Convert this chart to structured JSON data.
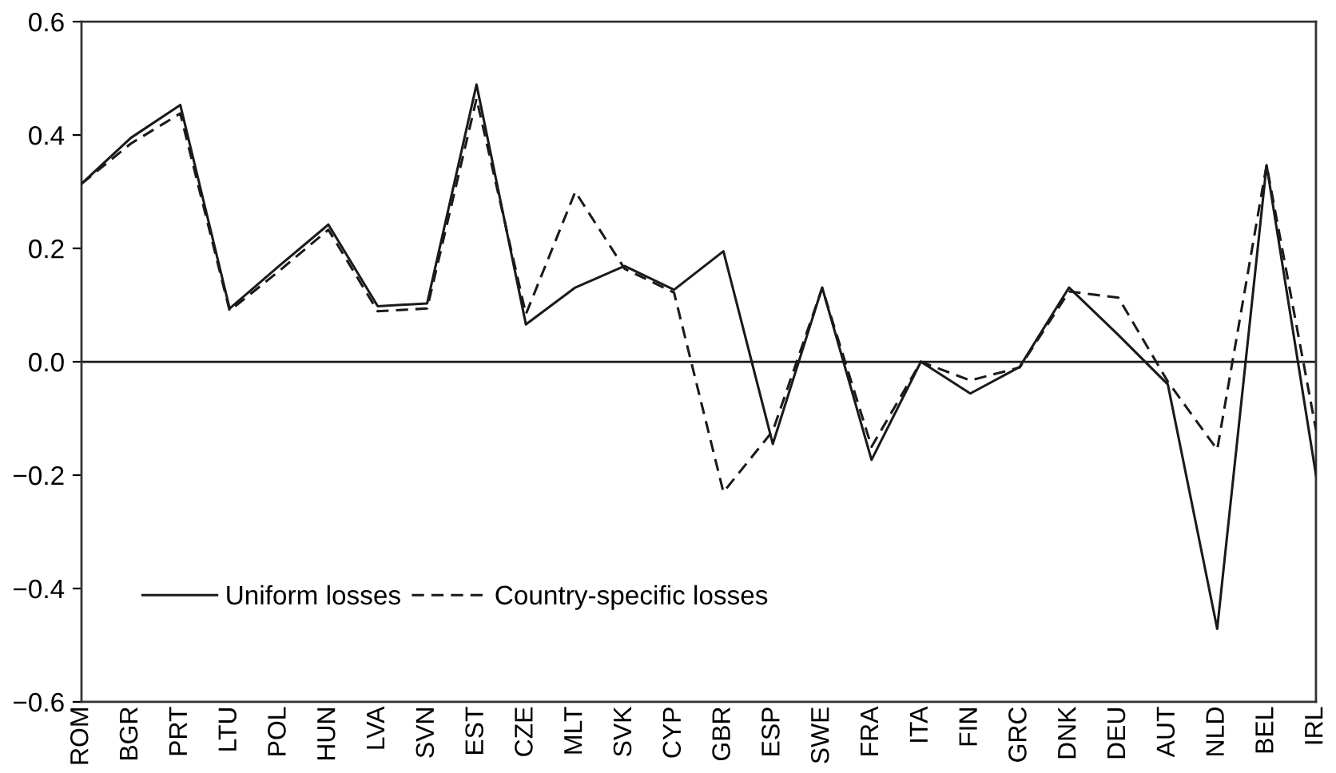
{
  "chart_data": {
    "type": "line",
    "categories": [
      "ROM",
      "BGR",
      "PRT",
      "LTU",
      "POL",
      "HUN",
      "LVA",
      "SVN",
      "EST",
      "CZE",
      "MLT",
      "SVK",
      "CYP",
      "GBR",
      "ESP",
      "SWE",
      "FRA",
      "ITA",
      "FIN",
      "GRC",
      "DNK",
      "DEU",
      "AUT",
      "NLD",
      "BEL",
      "IRL"
    ],
    "series": [
      {
        "name": "Uniform losses",
        "color": "#1a1a1a",
        "line_style": "solid",
        "values": [
          0.314,
          0.395,
          0.453,
          0.094,
          0.169,
          0.242,
          0.098,
          0.103,
          0.489,
          0.066,
          0.131,
          0.169,
          0.127,
          0.195,
          -0.145,
          0.131,
          -0.173,
          0.0,
          -0.056,
          -0.009,
          0.131,
          0.047,
          -0.04,
          -0.471,
          0.347,
          -0.2
        ]
      },
      {
        "name": "Country-specific losses",
        "color": "#1a1a1a",
        "line_style": "dashed",
        "values": [
          0.314,
          0.385,
          0.438,
          0.09,
          0.16,
          0.233,
          0.089,
          0.094,
          0.464,
          0.084,
          0.3,
          0.164,
          0.122,
          -0.23,
          -0.122,
          0.13,
          -0.15,
          0.0,
          -0.033,
          -0.01,
          0.124,
          0.113,
          -0.035,
          -0.155,
          0.347,
          -0.12
        ]
      }
    ],
    "ylim": [
      -0.6,
      0.6
    ],
    "yticks": [
      {
        "value": -0.6,
        "label": "−0.6"
      },
      {
        "value": -0.4,
        "label": "−0.4"
      },
      {
        "value": -0.2,
        "label": "−0.2"
      },
      {
        "value": 0,
        "label": "0.0"
      },
      0.2,
      0.4,
      0.6
    ],
    "ref_lines": [
      {
        "axis": "y",
        "value": 0,
        "color": "#1a1a1a",
        "line_style": "solid"
      }
    ],
    "legend": "bottom left"
  }
}
